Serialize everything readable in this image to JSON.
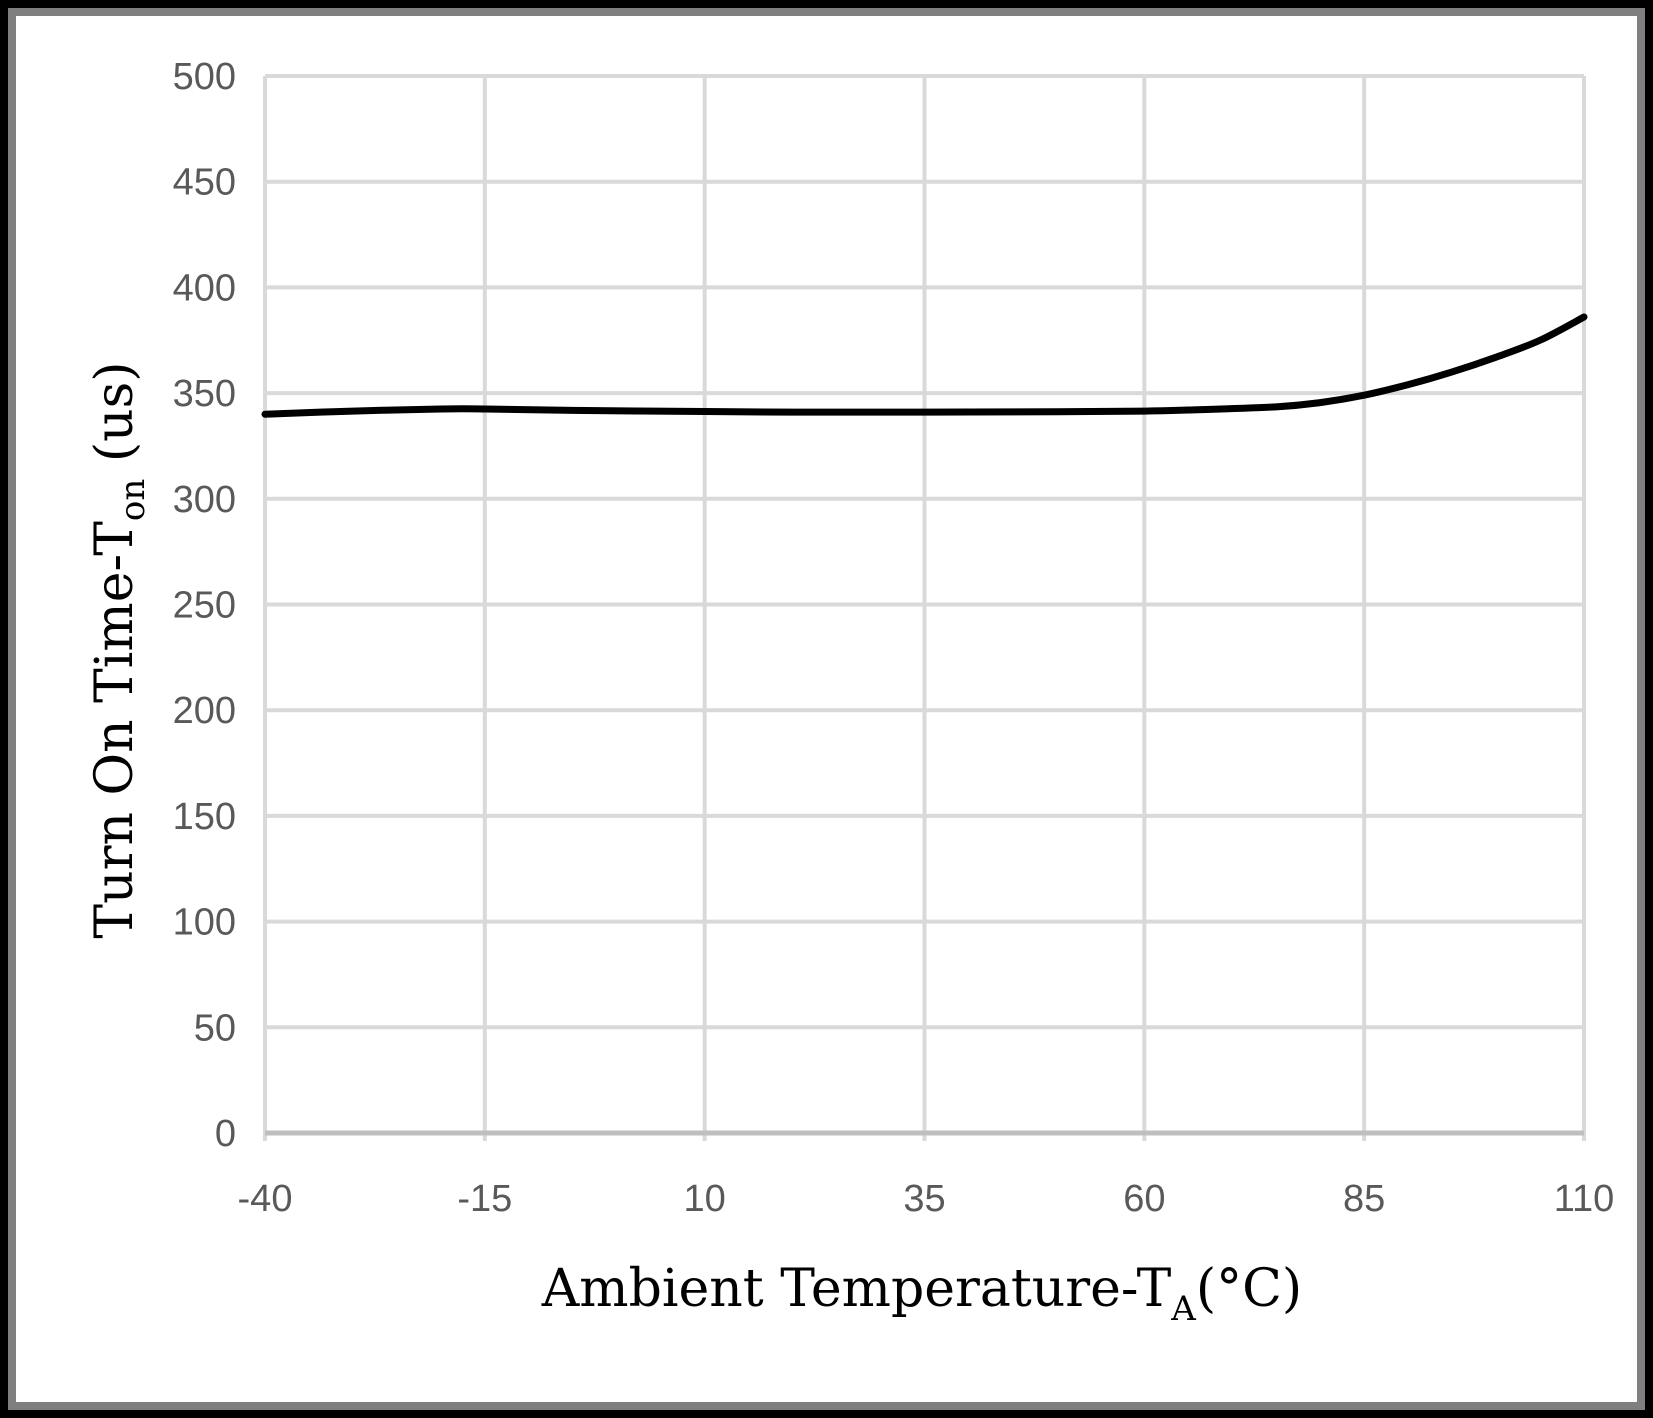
{
  "chart_data": {
    "type": "line",
    "title": "",
    "xlabel": {
      "main": "Ambient Temperature-T",
      "subscript": "A",
      "suffix": "(°C)"
    },
    "ylabel": {
      "main": "Turn On Time-T",
      "subscript": "on",
      "suffix": " (us)"
    },
    "xlim": [
      -40,
      110
    ],
    "ylim": [
      0,
      500
    ],
    "x_ticks": [
      -40,
      -15,
      10,
      35,
      60,
      85,
      110
    ],
    "y_ticks": [
      0,
      50,
      100,
      150,
      200,
      250,
      300,
      350,
      400,
      450,
      500
    ],
    "grid": true,
    "legend": "none",
    "colors": {
      "line": "#000000",
      "grid": "#d9d9d9",
      "tick_text": "#595959"
    },
    "series": [
      {
        "name": "Turn On Time",
        "x": [
          -40,
          -30,
          -20,
          -15,
          -5,
          10,
          20,
          35,
          50,
          60,
          65,
          75,
          80,
          85,
          90,
          95,
          100,
          105,
          110
        ],
        "y": [
          340,
          341.5,
          342.5,
          342.5,
          341.8,
          341.3,
          341,
          341,
          341.2,
          341.5,
          342,
          343.5,
          345.5,
          349,
          354,
          360,
          367,
          375,
          386
        ]
      }
    ]
  }
}
